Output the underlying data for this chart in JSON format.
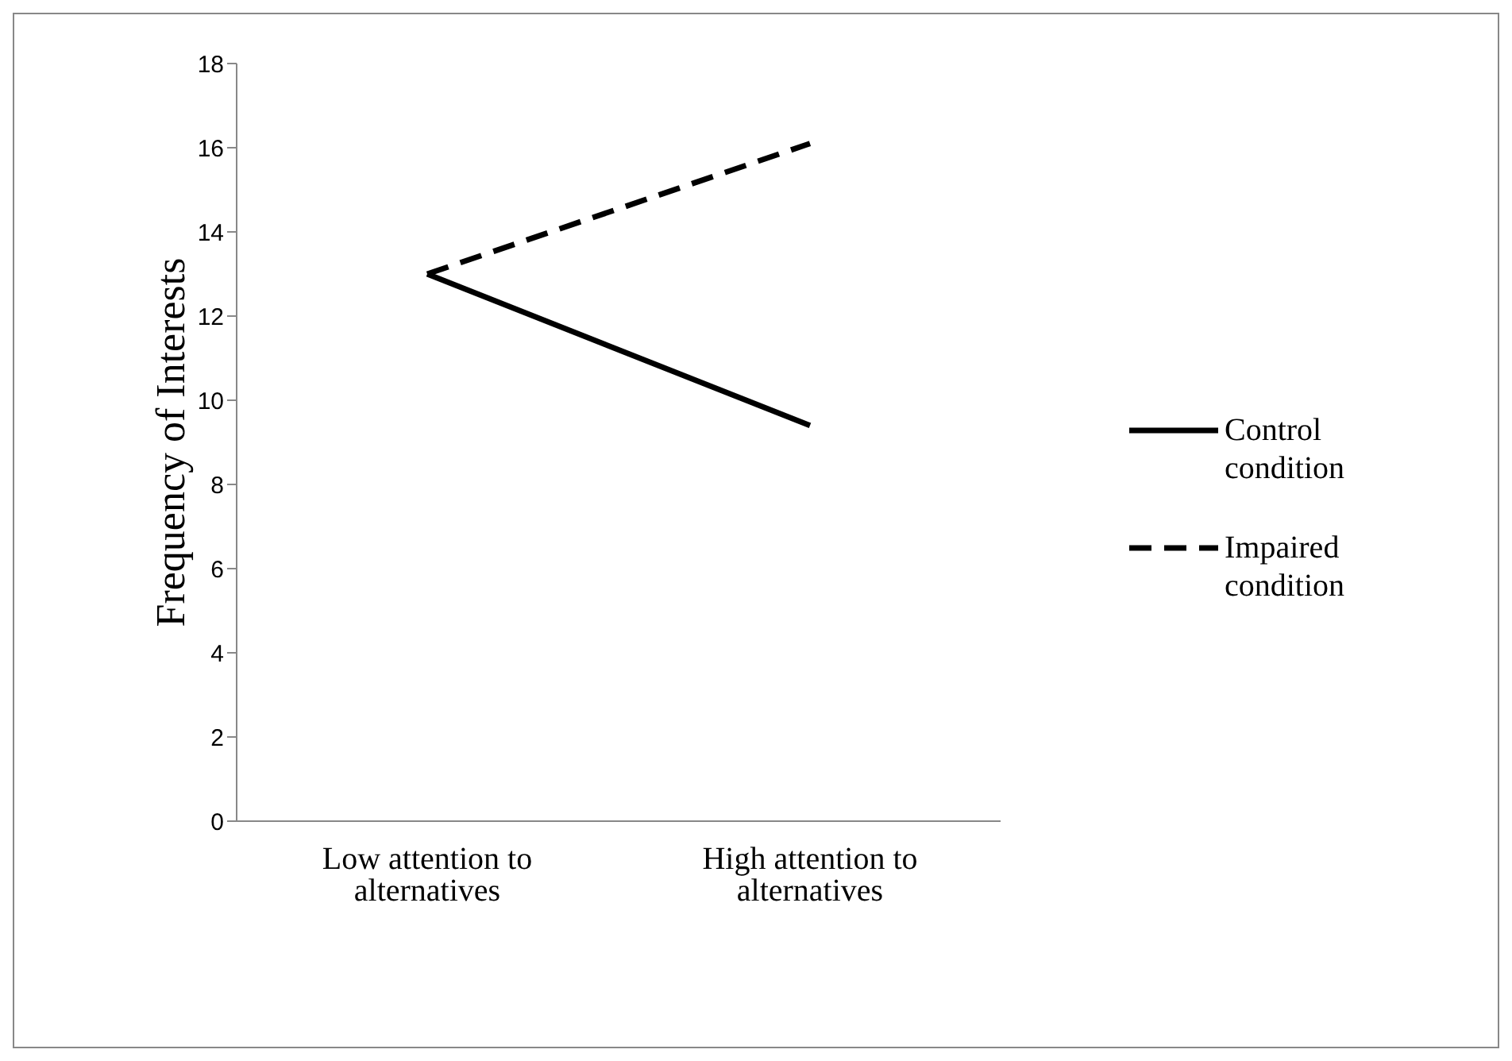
{
  "chart_data": {
    "type": "line",
    "ylabel": "Frequency of Interests",
    "categories": [
      "Low attention to alternatives",
      "High attention to alternatives"
    ],
    "series": [
      {
        "name": "Control condition",
        "color": "#000000",
        "values": [
          13.0,
          9.4
        ],
        "line_style": "solid"
      },
      {
        "name": "Impaired condition",
        "color": "#000000",
        "values": [
          13.0,
          16.1
        ],
        "line_style": "dashed"
      }
    ],
    "ylim": [
      0,
      18
    ],
    "yticks": [
      0,
      2,
      4,
      6,
      8,
      10,
      12,
      14,
      16,
      18
    ],
    "grid": false,
    "legend": "right",
    "marker": "none"
  }
}
